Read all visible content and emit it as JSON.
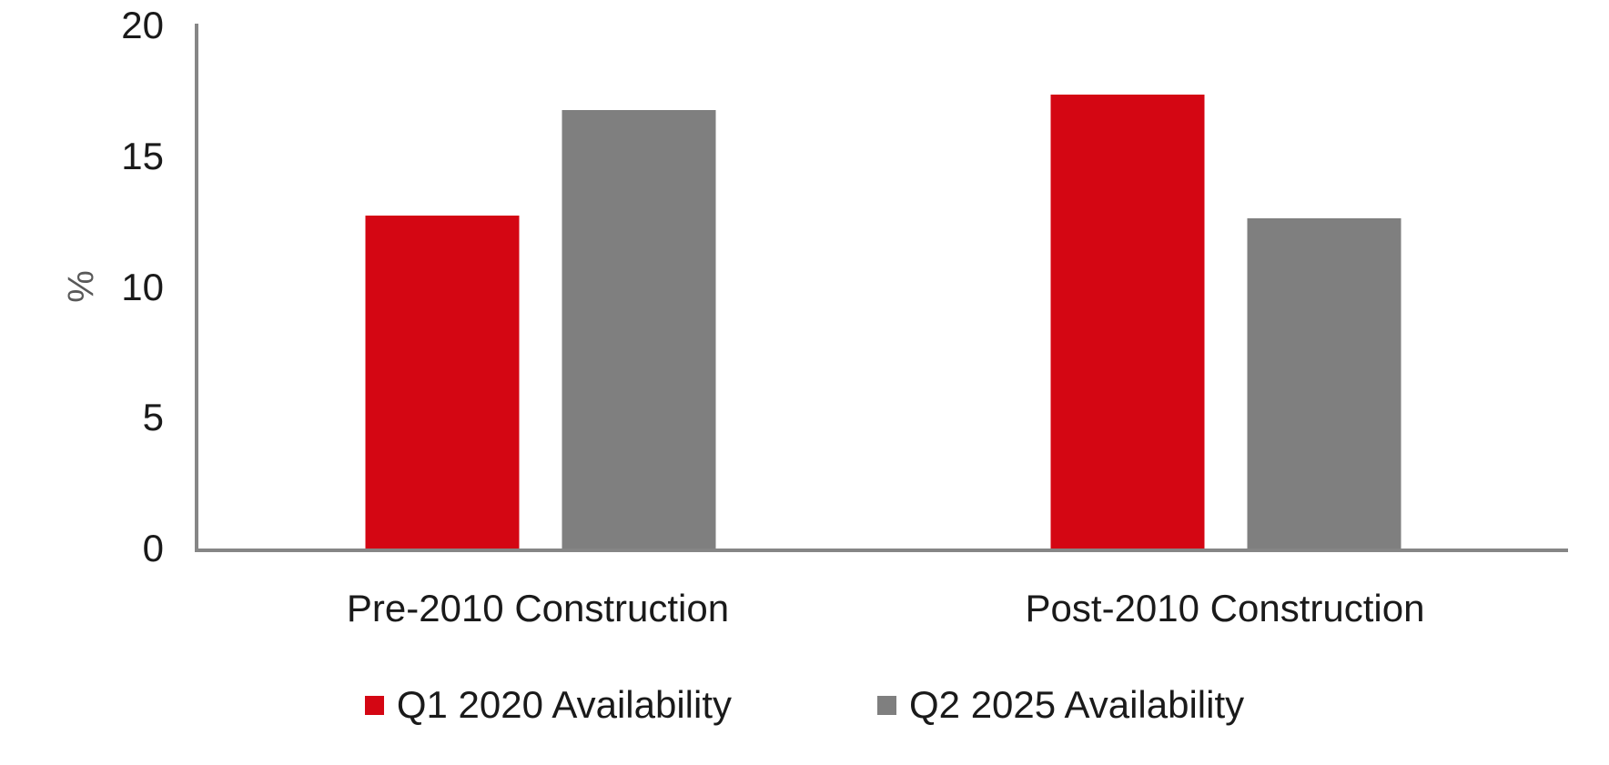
{
  "chart_data": {
    "type": "bar",
    "title": "",
    "categories": [
      "Pre-2010 Construction",
      "Post-2010 Construction"
    ],
    "series": [
      {
        "name": "Q1 2020 Availability",
        "color": "#d40613",
        "values": [
          12.7,
          17.3
        ]
      },
      {
        "name": "Q2 2025 Availability",
        "color": "#7f7f7f",
        "values": [
          16.7,
          12.6
        ]
      }
    ],
    "xlabel": "",
    "ylabel": "%",
    "ylim": [
      0,
      20
    ],
    "yticks": [
      0,
      5,
      10,
      15,
      20
    ],
    "grid": false,
    "legend_position": "bottom",
    "axis_color": "#868686",
    "text_color": "#1a1a1a",
    "ylabel_color": "#595959",
    "background_color": "#ffffff"
  }
}
